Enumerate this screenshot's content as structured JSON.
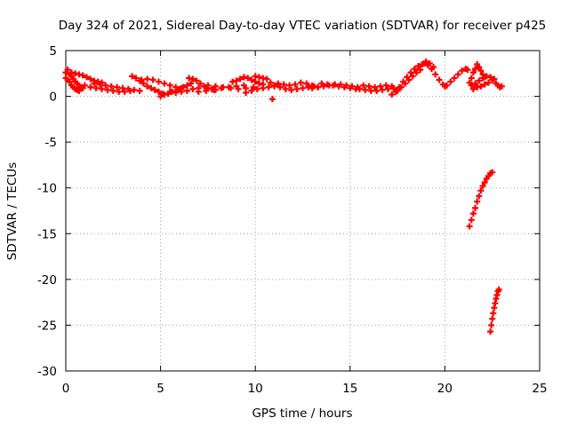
{
  "chart_data": {
    "type": "scatter",
    "title": "Day 324 of 2021, Sidereal Day-to-day VTEC variation (SDTVAR) for receiver p425",
    "xlabel": "GPS time / hours",
    "ylabel": "SDTVAR / TECUs",
    "xlim": [
      0,
      25
    ],
    "ylim": [
      -30,
      5
    ],
    "xticks": [
      0,
      5,
      10,
      15,
      20,
      25
    ],
    "yticks": [
      5,
      0,
      -5,
      -10,
      -15,
      -20,
      -25,
      -30
    ],
    "grid": true,
    "legend": "none",
    "marker": "+",
    "color": "#ff0000",
    "series": [
      {
        "points": [
          [
            0.0,
            2.6
          ],
          [
            0.1,
            2.9
          ],
          [
            0.2,
            2.4
          ],
          [
            0.3,
            2.2
          ],
          [
            0.4,
            1.9
          ],
          [
            0.5,
            1.6
          ],
          [
            0.6,
            1.4
          ],
          [
            0.7,
            1.2
          ],
          [
            0.8,
            1.0
          ],
          [
            0.9,
            0.9
          ],
          [
            0.0,
            2.0
          ],
          [
            0.1,
            1.8
          ],
          [
            0.2,
            1.6
          ],
          [
            0.3,
            1.2
          ],
          [
            0.4,
            1.0
          ],
          [
            0.5,
            0.8
          ],
          [
            0.6,
            0.7
          ],
          [
            0.7,
            0.6
          ],
          [
            0.3,
            2.6
          ],
          [
            0.5,
            2.5
          ],
          [
            0.7,
            2.4
          ],
          [
            0.9,
            2.3
          ],
          [
            1.1,
            2.1
          ],
          [
            1.3,
            1.9
          ],
          [
            1.5,
            1.7
          ],
          [
            1.7,
            1.6
          ],
          [
            1.9,
            1.5
          ],
          [
            1.0,
            1.2
          ],
          [
            1.3,
            1.0
          ],
          [
            1.6,
            0.9
          ],
          [
            1.9,
            0.8
          ],
          [
            2.2,
            0.7
          ],
          [
            2.5,
            0.6
          ],
          [
            2.8,
            0.5
          ],
          [
            3.1,
            0.5
          ],
          [
            3.4,
            0.6
          ],
          [
            1.5,
            1.4
          ],
          [
            1.8,
            1.3
          ],
          [
            2.1,
            1.2
          ],
          [
            2.4,
            1.1
          ],
          [
            2.7,
            1.0
          ],
          [
            3.0,
            0.9
          ],
          [
            3.3,
            0.8
          ],
          [
            3.6,
            0.7
          ],
          [
            3.9,
            0.6
          ],
          [
            3.5,
            2.2
          ],
          [
            3.7,
            2.0
          ],
          [
            3.9,
            1.7
          ],
          [
            4.1,
            1.4
          ],
          [
            4.3,
            1.1
          ],
          [
            4.5,
            0.9
          ],
          [
            4.7,
            0.7
          ],
          [
            4.9,
            0.5
          ],
          [
            5.1,
            0.3
          ],
          [
            4.0,
            1.8
          ],
          [
            4.3,
            1.9
          ],
          [
            4.6,
            1.8
          ],
          [
            4.9,
            1.6
          ],
          [
            5.2,
            1.4
          ],
          [
            5.5,
            1.2
          ],
          [
            5.8,
            1.0
          ],
          [
            6.1,
            0.9
          ],
          [
            5.0,
            0.0
          ],
          [
            5.2,
            0.2
          ],
          [
            5.4,
            0.3
          ],
          [
            5.6,
            0.5
          ],
          [
            5.8,
            0.6
          ],
          [
            6.0,
            0.8
          ],
          [
            6.2,
            1.0
          ],
          [
            6.4,
            1.2
          ],
          [
            6.6,
            1.4
          ],
          [
            5.5,
            0.5
          ],
          [
            5.8,
            0.4
          ],
          [
            6.1,
            0.5
          ],
          [
            6.4,
            0.6
          ],
          [
            6.7,
            0.8
          ],
          [
            7.0,
            0.9
          ],
          [
            6.5,
            2.0
          ],
          [
            6.7,
            1.9
          ],
          [
            6.9,
            1.7
          ],
          [
            7.1,
            1.4
          ],
          [
            7.3,
            1.1
          ],
          [
            7.5,
            0.9
          ],
          [
            7.7,
            0.8
          ],
          [
            7.9,
            0.7
          ],
          [
            7.0,
            0.5
          ],
          [
            7.4,
            0.6
          ],
          [
            7.8,
            0.7
          ],
          [
            8.2,
            0.9
          ],
          [
            8.6,
            1.0
          ],
          [
            9.0,
            1.1
          ],
          [
            9.4,
            1.2
          ],
          [
            7.5,
            1.2
          ],
          [
            7.9,
            1.1
          ],
          [
            8.3,
            1.0
          ],
          [
            8.7,
            0.9
          ],
          [
            9.1,
            0.8
          ],
          [
            9.5,
            0.9
          ],
          [
            9.9,
            1.0
          ],
          [
            8.8,
            1.6
          ],
          [
            9.0,
            1.7
          ],
          [
            9.2,
            1.9
          ],
          [
            9.4,
            2.1
          ],
          [
            9.6,
            2.0
          ],
          [
            9.8,
            1.8
          ],
          [
            10.0,
            1.6
          ],
          [
            10.2,
            1.4
          ],
          [
            10.4,
            1.3
          ],
          [
            9.5,
            0.4
          ],
          [
            9.8,
            0.6
          ],
          [
            10.1,
            0.8
          ],
          [
            10.4,
            0.9
          ],
          [
            10.7,
            1.0
          ],
          [
            11.0,
            1.1
          ],
          [
            10.0,
            2.2
          ],
          [
            10.2,
            2.1
          ],
          [
            10.4,
            2.0
          ],
          [
            10.6,
            1.9
          ],
          [
            10.8,
            1.5
          ],
          [
            10.9,
            -0.3
          ],
          [
            11.0,
            1.2
          ],
          [
            11.3,
            1.0
          ],
          [
            11.6,
            0.8
          ],
          [
            11.9,
            0.7
          ],
          [
            12.2,
            0.8
          ],
          [
            12.5,
            0.9
          ],
          [
            12.8,
            1.0
          ],
          [
            13.1,
            1.1
          ],
          [
            11.2,
            1.4
          ],
          [
            11.5,
            1.3
          ],
          [
            11.8,
            1.2
          ],
          [
            12.1,
            1.3
          ],
          [
            12.4,
            1.5
          ],
          [
            12.7,
            1.4
          ],
          [
            13.0,
            1.2
          ],
          [
            13.3,
            1.0
          ],
          [
            13.0,
            0.9
          ],
          [
            13.3,
            1.0
          ],
          [
            13.6,
            1.1
          ],
          [
            13.9,
            1.2
          ],
          [
            14.2,
            1.3
          ],
          [
            14.5,
            1.3
          ],
          [
            14.8,
            1.2
          ],
          [
            15.1,
            1.1
          ],
          [
            15.4,
            1.0
          ],
          [
            13.5,
            1.4
          ],
          [
            13.8,
            1.3
          ],
          [
            14.1,
            1.2
          ],
          [
            14.4,
            1.1
          ],
          [
            14.7,
            1.0
          ],
          [
            15.0,
            0.9
          ],
          [
            15.3,
            0.8
          ],
          [
            15.5,
            0.8
          ],
          [
            15.8,
            0.7
          ],
          [
            16.1,
            0.6
          ],
          [
            16.4,
            0.6
          ],
          [
            16.7,
            0.7
          ],
          [
            17.0,
            0.8
          ],
          [
            17.3,
            0.9
          ],
          [
            15.7,
            1.2
          ],
          [
            16.0,
            1.1
          ],
          [
            16.3,
            1.0
          ],
          [
            16.6,
            1.1
          ],
          [
            16.9,
            1.2
          ],
          [
            17.2,
            1.1
          ],
          [
            17.2,
            0.2
          ],
          [
            17.4,
            0.5
          ],
          [
            17.6,
            1.0
          ],
          [
            17.8,
            1.6
          ],
          [
            18.0,
            2.1
          ],
          [
            18.2,
            2.6
          ],
          [
            18.4,
            3.0
          ],
          [
            18.6,
            3.3
          ],
          [
            18.8,
            3.5
          ],
          [
            17.5,
            0.6
          ],
          [
            17.7,
            1.0
          ],
          [
            17.9,
            1.4
          ],
          [
            18.1,
            1.8
          ],
          [
            18.3,
            2.2
          ],
          [
            18.5,
            2.6
          ],
          [
            18.7,
            2.9
          ],
          [
            18.9,
            3.6
          ],
          [
            19.1,
            3.4
          ],
          [
            19.3,
            3.0
          ],
          [
            19.5,
            2.4
          ],
          [
            19.7,
            1.8
          ],
          [
            19.9,
            1.3
          ],
          [
            20.0,
            1.1
          ],
          [
            20.1,
            1.2
          ],
          [
            20.3,
            1.6
          ],
          [
            19.0,
            3.8
          ],
          [
            19.2,
            3.6
          ],
          [
            19.4,
            3.2
          ],
          [
            20.5,
            2.0
          ],
          [
            20.7,
            2.4
          ],
          [
            20.9,
            2.8
          ],
          [
            21.1,
            3.0
          ],
          [
            21.2,
            2.9
          ],
          [
            21.3,
            1.5
          ],
          [
            21.4,
            2.0
          ],
          [
            21.5,
            2.6
          ],
          [
            21.6,
            3.0
          ],
          [
            21.7,
            3.5
          ],
          [
            21.8,
            3.2
          ],
          [
            21.9,
            2.8
          ],
          [
            22.0,
            2.4
          ],
          [
            22.1,
            2.1
          ],
          [
            21.4,
            1.2
          ],
          [
            21.6,
            1.4
          ],
          [
            21.8,
            1.7
          ],
          [
            22.0,
            2.0
          ],
          [
            22.2,
            2.2
          ],
          [
            22.4,
            2.1
          ],
          [
            22.6,
            1.9
          ],
          [
            21.5,
            0.8
          ],
          [
            21.7,
            1.0
          ],
          [
            21.9,
            1.1
          ],
          [
            22.1,
            1.3
          ],
          [
            22.3,
            1.5
          ],
          [
            22.5,
            1.8
          ],
          [
            22.7,
            1.4
          ],
          [
            22.8,
            1.2
          ],
          [
            22.9,
            1.0
          ],
          [
            23.0,
            1.1
          ],
          [
            21.3,
            -14.2
          ],
          [
            21.4,
            -13.5
          ],
          [
            21.5,
            -12.8
          ],
          [
            21.6,
            -12.2
          ],
          [
            21.7,
            -11.5
          ],
          [
            21.8,
            -10.9
          ],
          [
            21.9,
            -10.3
          ],
          [
            22.0,
            -9.8
          ],
          [
            22.1,
            -9.4
          ],
          [
            22.2,
            -9.0
          ],
          [
            22.3,
            -8.7
          ],
          [
            22.4,
            -8.4
          ],
          [
            22.5,
            -8.3
          ],
          [
            22.4,
            -25.7
          ],
          [
            22.45,
            -25.0
          ],
          [
            22.5,
            -24.3
          ],
          [
            22.55,
            -23.7
          ],
          [
            22.6,
            -23.1
          ],
          [
            22.65,
            -22.6
          ],
          [
            22.7,
            -22.1
          ],
          [
            22.75,
            -21.7
          ],
          [
            22.8,
            -21.3
          ],
          [
            22.85,
            -21.1
          ]
        ]
      }
    ]
  }
}
